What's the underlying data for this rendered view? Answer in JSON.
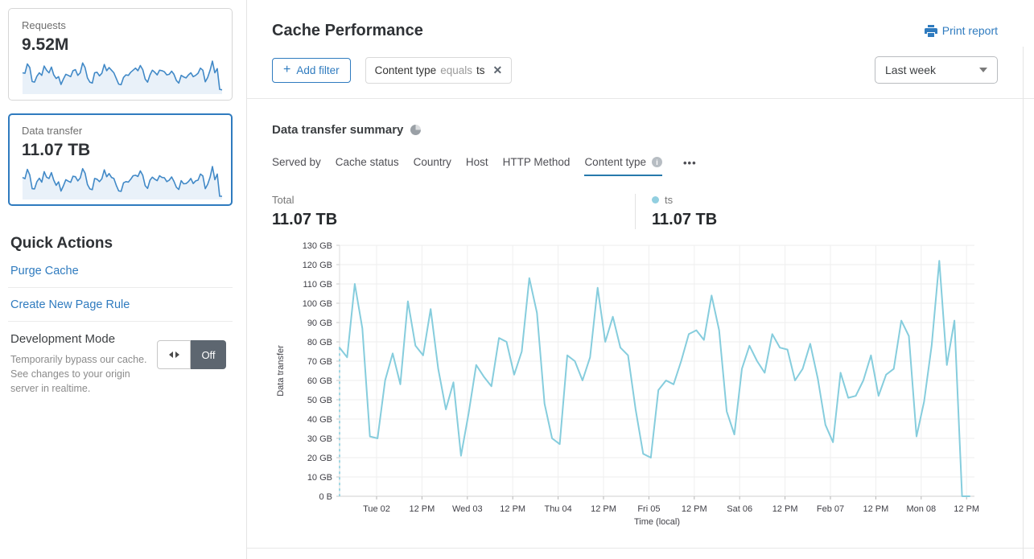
{
  "colors": {
    "accent": "#2f7bbf",
    "spark_stroke": "#4189c7",
    "spark_fill": "#e9f1f9",
    "series_light_blue": "#86cddd"
  },
  "icons": {
    "plus": "+",
    "close": "✕",
    "ellipsis": "•••",
    "info": "i"
  },
  "sidebar": {
    "requests_card": {
      "label": "Requests",
      "value": "9.52M",
      "sparkline": [
        70,
        68,
        104,
        90,
        36,
        34,
        57,
        70,
        60,
        96,
        80,
        70,
        92,
        62,
        48,
        55,
        25,
        46,
        64,
        60,
        55,
        78,
        82,
        60,
        70,
        108,
        90,
        50,
        34,
        30,
        70,
        72,
        58,
        68,
        102,
        78,
        90,
        80,
        70,
        48,
        26,
        24,
        52,
        62,
        60,
        72,
        80,
        88,
        78,
        98,
        82,
        46,
        34,
        62,
        80,
        72,
        62,
        80,
        78,
        74,
        62,
        64,
        76,
        64,
        40,
        30,
        60,
        54,
        50,
        62,
        70,
        55,
        60,
        68,
        88,
        80,
        35,
        52,
        80,
        115,
        70,
        86,
        6,
        4
      ]
    },
    "data_transfer_card": {
      "label": "Data transfer",
      "value": "11.07 TB"
    },
    "quick_actions": {
      "title": "Quick Actions",
      "links": [
        {
          "label": "Purge Cache"
        },
        {
          "label": "Create New Page Rule"
        }
      ],
      "development_mode": {
        "title": "Development Mode",
        "description": "Temporarily bypass our cache. See changes to your origin server in realtime.",
        "state": "Off"
      }
    }
  },
  "header": {
    "title": "Cache Performance",
    "print_label": "Print report"
  },
  "filters": {
    "add_filter_label": "Add filter",
    "chip": {
      "field": "Content type",
      "operator": "equals",
      "value": "ts"
    },
    "time_range": "Last week"
  },
  "summary": {
    "title": "Data transfer summary",
    "tabs": [
      {
        "label": "Served by"
      },
      {
        "label": "Cache status"
      },
      {
        "label": "Country"
      },
      {
        "label": "Host"
      },
      {
        "label": "HTTP Method"
      },
      {
        "label": "Content type",
        "active": true
      }
    ],
    "total_label": "Total",
    "total_value": "11.07 TB",
    "legend": {
      "name": "ts",
      "value": "11.07 TB",
      "color": "#92cfe0"
    }
  },
  "chart_data": {
    "type": "line",
    "unit": "GB",
    "xlabel": "Time (local)",
    "ylabel": "Data transfer",
    "y_max": 130,
    "y_ticks": [
      "130 GB",
      "120 GB",
      "110 GB",
      "100 GB",
      "90 GB",
      "80 GB",
      "70 GB",
      "60 GB",
      "50 GB",
      "40 GB",
      "30 GB",
      "20 GB",
      "10 GB",
      "0 B"
    ],
    "x_ticks": [
      "Tue 02",
      "12 PM",
      "Wed 03",
      "12 PM",
      "Thu 04",
      "12 PM",
      "Fri 05",
      "12 PM",
      "Sat 06",
      "12 PM",
      "Feb 07",
      "12 PM",
      "Mon 08",
      "12 PM"
    ],
    "sample_interval_hours": 2,
    "grid": true,
    "legend_position": "above-right",
    "series": [
      {
        "name": "ts",
        "color": "#86cddd",
        "values": [
          77,
          72,
          110,
          87,
          31,
          30,
          60,
          74,
          58,
          101,
          78,
          73,
          97,
          66,
          45,
          59,
          21,
          43,
          68,
          62,
          57,
          82,
          80,
          63,
          75,
          113,
          95,
          48,
          30,
          27,
          73,
          70,
          60,
          72,
          108,
          80,
          93,
          77,
          73,
          45,
          22,
          20,
          55,
          60,
          58,
          70,
          84,
          86,
          81,
          104,
          86,
          44,
          32,
          66,
          78,
          70,
          64,
          84,
          77,
          76,
          60,
          66,
          79,
          61,
          37,
          28,
          64,
          51,
          52,
          60,
          73,
          52,
          63,
          66,
          91,
          83,
          31,
          49,
          78,
          122,
          68,
          91,
          0,
          0
        ]
      }
    ]
  }
}
